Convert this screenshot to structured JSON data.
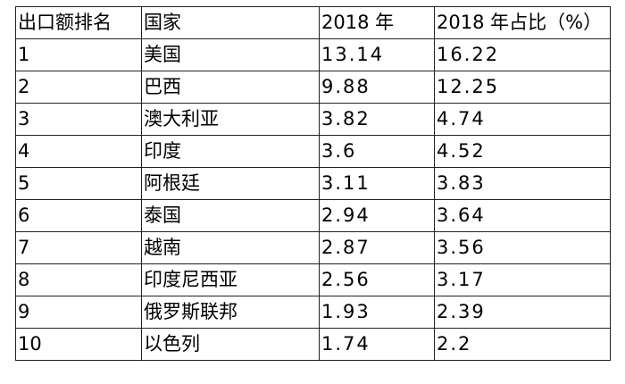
{
  "headers": [
    "出口额排名",
    "国家",
    "2018 年",
    "2018 年占比（%）"
  ],
  "rows": [
    [
      "1",
      "美国",
      "13.14",
      "16.22"
    ],
    [
      "2",
      "巴西",
      "9.88",
      "12.25"
    ],
    [
      "3",
      "澳大利亚",
      "3.82",
      "4.74"
    ],
    [
      "4",
      "印度",
      "3.6",
      "4.52"
    ],
    [
      "5",
      "阿根廷",
      "3.11",
      "3.83"
    ],
    [
      "6",
      "泰国",
      "2.94",
      "3.64"
    ],
    [
      "7",
      "越南",
      "2.87",
      "3.56"
    ],
    [
      "8",
      "印度尼西亚",
      "2.56",
      "3.17"
    ],
    [
      "9",
      "俄罗斯联邦",
      "1.93",
      "2.39"
    ],
    [
      "10",
      "以色列",
      "1.74",
      "2.2"
    ]
  ]
}
